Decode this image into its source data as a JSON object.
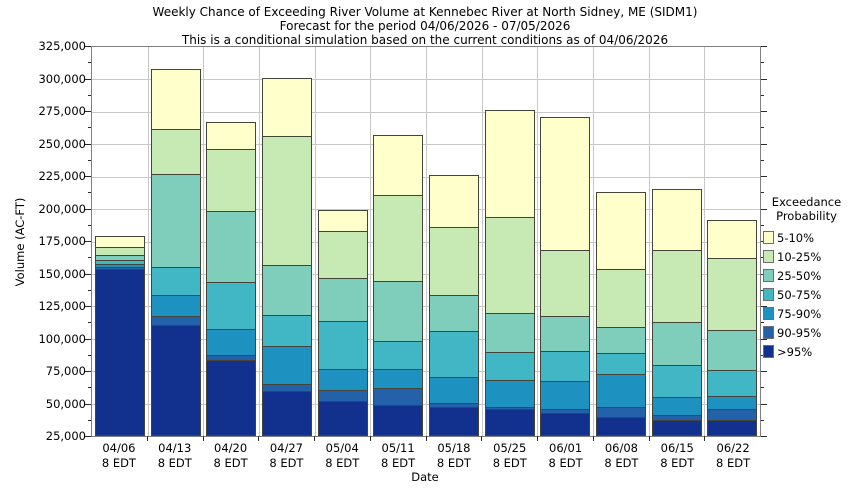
{
  "title_lines": [
    "Weekly Chance of Exceeding River Volume at Kennebec River at North Sidney, ME (SIDM1)",
    "Forecast for the period 04/06/2026 - 07/05/2026",
    "This is a conditional simulation based on the current conditions as of 04/06/2026"
  ],
  "y_axis": {
    "label": "Volume (AC-FT)",
    "min": 25000,
    "max": 325000,
    "tick_step": 25000,
    "tick_labels": [
      "25,000",
      "50,000",
      "75,000",
      "100,000",
      "125,000",
      "150,000",
      "175,000",
      "200,000",
      "225,000",
      "250,000",
      "275,000",
      "300,000",
      "325,000"
    ]
  },
  "x_axis": {
    "label": "Date",
    "time_label": "8 EDT"
  },
  "legend": {
    "title_lines": [
      "Exceedance",
      "Probability"
    ],
    "entries_top_down": [
      "5-10%",
      "10-25%",
      "25-50%",
      "50-75%",
      "75-90%",
      "90-95%",
      ">95%"
    ]
  },
  "chart_data": {
    "type": "bar",
    "stacked": true,
    "title": "Weekly Chance of Exceeding River Volume at Kennebec River at North Sidney, ME (SIDM1)",
    "xlabel": "Date",
    "ylabel": "Volume (AC-FT)",
    "ylim": [
      25000,
      325000
    ],
    "grid": true,
    "legend_position": "right",
    "baseline": 25000,
    "categories": [
      "04/06",
      "04/13",
      "04/20",
      "04/27",
      "05/04",
      "05/11",
      "05/18",
      "05/25",
      "06/01",
      "06/08",
      "06/15",
      "06/22"
    ],
    "series": [
      {
        "name": ">95%",
        "color": "#12308d",
        "values": [
          129000,
          86000,
          59000,
          35000,
          27000,
          24000,
          22500,
          20500,
          18000,
          15000,
          12500,
          12000
        ]
      },
      {
        "name": "90-95%",
        "color": "#2361a9",
        "values": [
          2000,
          7000,
          4000,
          6000,
          9000,
          14000,
          3500,
          2500,
          4000,
          8500,
          4500,
          10000
        ]
      },
      {
        "name": "75-90%",
        "color": "#1d91c0",
        "values": [
          3000,
          17000,
          21000,
          30000,
          17000,
          15000,
          21000,
          22000,
          22000,
          25500,
          15000,
          10500
        ]
      },
      {
        "name": "50-75%",
        "color": "#41b6c4",
        "values": [
          4000,
          23000,
          37000,
          25000,
          38000,
          23000,
          36000,
          22000,
          24000,
          17000,
          25000,
          20500
        ]
      },
      {
        "name": "25-50%",
        "color": "#7fcdbb",
        "values": [
          4500,
          72000,
          56000,
          39000,
          34000,
          47000,
          29000,
          31000,
          28000,
          21000,
          34000,
          32000
        ]
      },
      {
        "name": "10-25%",
        "color": "#c7e9b4",
        "values": [
          7500,
          36000,
          48000,
          100000,
          37000,
          67000,
          53000,
          75000,
          51000,
          46000,
          56000,
          56000
        ]
      },
      {
        "name": "5-10%",
        "color": "#ffffcc",
        "values": [
          9000,
          47000,
          22000,
          46000,
          17000,
          47000,
          41000,
          83000,
          104000,
          60000,
          48000,
          30000
        ]
      }
    ],
    "bar_totals_top_ac_ft": [
      184000,
      313000,
      272000,
      306000,
      204000,
      262000,
      231000,
      281000,
      276000,
      218000,
      220000,
      196000
    ]
  }
}
